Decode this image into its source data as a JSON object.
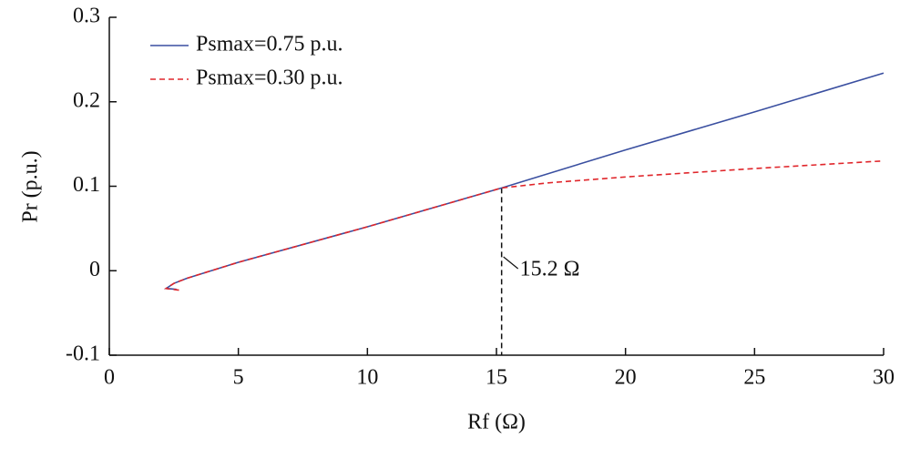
{
  "chart_data": {
    "type": "line",
    "xlabel": "Rf (Ω)",
    "ylabel": "Pr (p.u.)",
    "xlim": [
      0,
      30
    ],
    "ylim": [
      -0.1,
      0.3
    ],
    "xticks": [
      0,
      5,
      10,
      15,
      20,
      25,
      30
    ],
    "yticks": [
      -0.1,
      0,
      0.1,
      0.2,
      0.3
    ],
    "legend": "upper left",
    "series": [
      {
        "name": "Psmax=0.75 p.u.",
        "color": "#3a4fa0",
        "style": "solid",
        "x": [
          2.6,
          2.2,
          2.5,
          3,
          5,
          10,
          15.2,
          20,
          25,
          30
        ],
        "values": [
          -0.022,
          -0.021,
          -0.015,
          -0.009,
          0.01,
          0.052,
          0.098,
          0.143,
          0.188,
          0.234
        ]
      },
      {
        "name": "Psmax=0.30 p.u.",
        "color": "#e0262b",
        "style": "dashed",
        "x": [
          2.7,
          2.2,
          2.5,
          3,
          5,
          10,
          15.2,
          17,
          20,
          25,
          30
        ],
        "values": [
          -0.023,
          -0.021,
          -0.015,
          -0.009,
          0.01,
          0.052,
          0.098,
          0.104,
          0.111,
          0.121,
          0.13
        ]
      }
    ],
    "annotation": {
      "label": "15.2 Ω",
      "x": 15.2,
      "y": 0.098
    }
  }
}
